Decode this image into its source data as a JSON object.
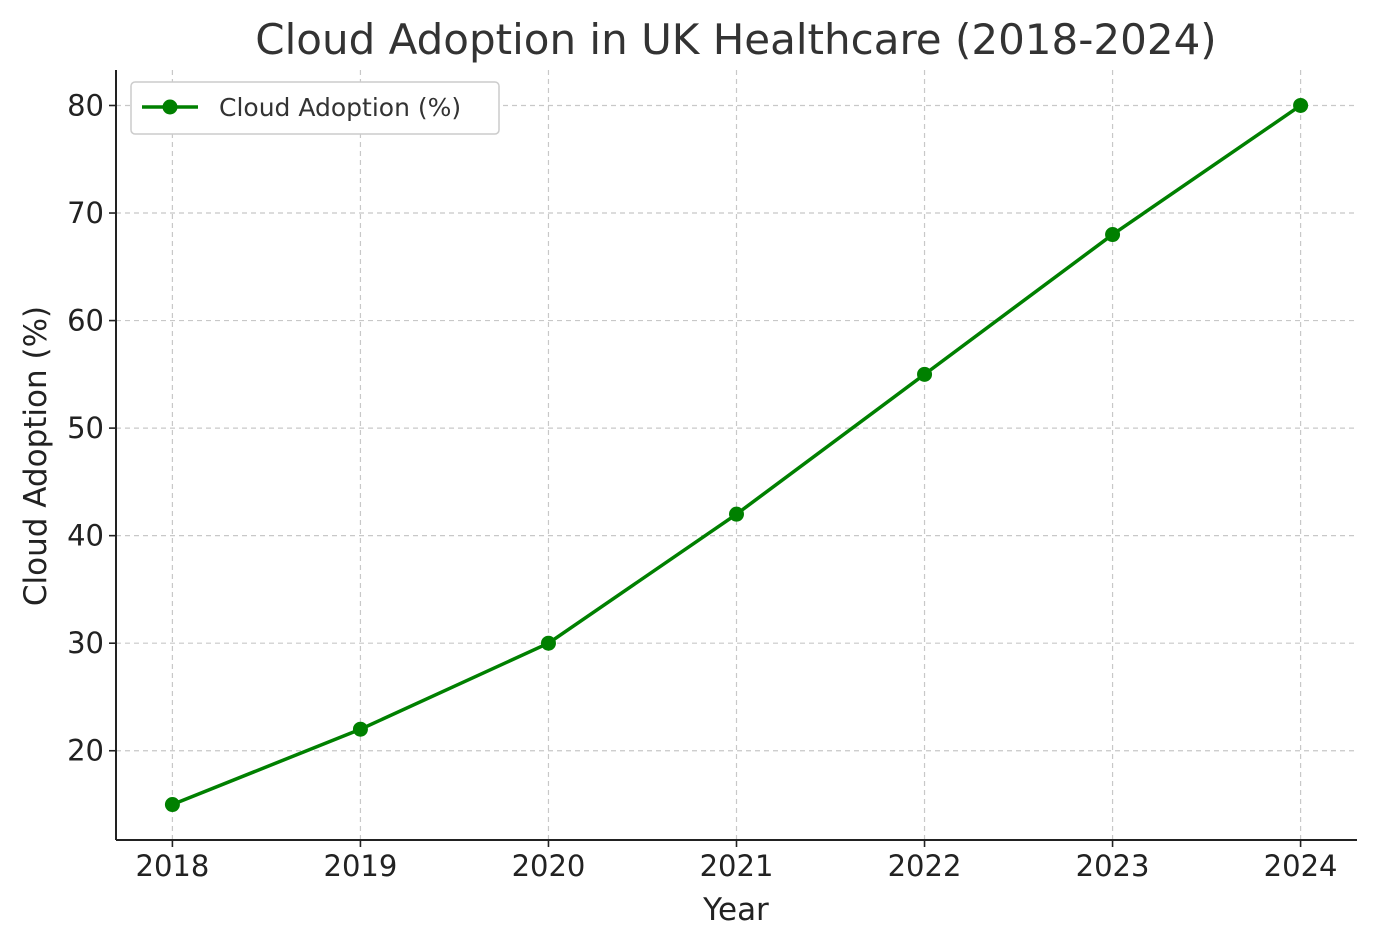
{
  "colors": {
    "series": "#008000",
    "grid": "#c8c8c8",
    "axis": "#222222"
  },
  "chart_data": {
    "type": "line",
    "title": "Cloud Adoption in UK Healthcare (2018-2024)",
    "xlabel": "Year",
    "ylabel": "Cloud Adoption (%)",
    "x": [
      2018,
      2019,
      2020,
      2021,
      2022,
      2023,
      2024
    ],
    "x_tick_labels": [
      "2018",
      "2019",
      "2020",
      "2021",
      "2022",
      "2023",
      "2024"
    ],
    "y_ticks": [
      20,
      30,
      40,
      50,
      60,
      70,
      80
    ],
    "y_tick_labels": [
      "20",
      "30",
      "40",
      "50",
      "60",
      "70",
      "80"
    ],
    "xlim": [
      2017.7,
      2024.3
    ],
    "ylim": [
      11.7,
      83.3
    ],
    "grid": true,
    "legend_position": "top-left",
    "series": [
      {
        "name": "Cloud Adoption (%)",
        "values": [
          15,
          22,
          30,
          42,
          55,
          68,
          80
        ],
        "marker": "circle",
        "color": "#008000"
      }
    ]
  }
}
